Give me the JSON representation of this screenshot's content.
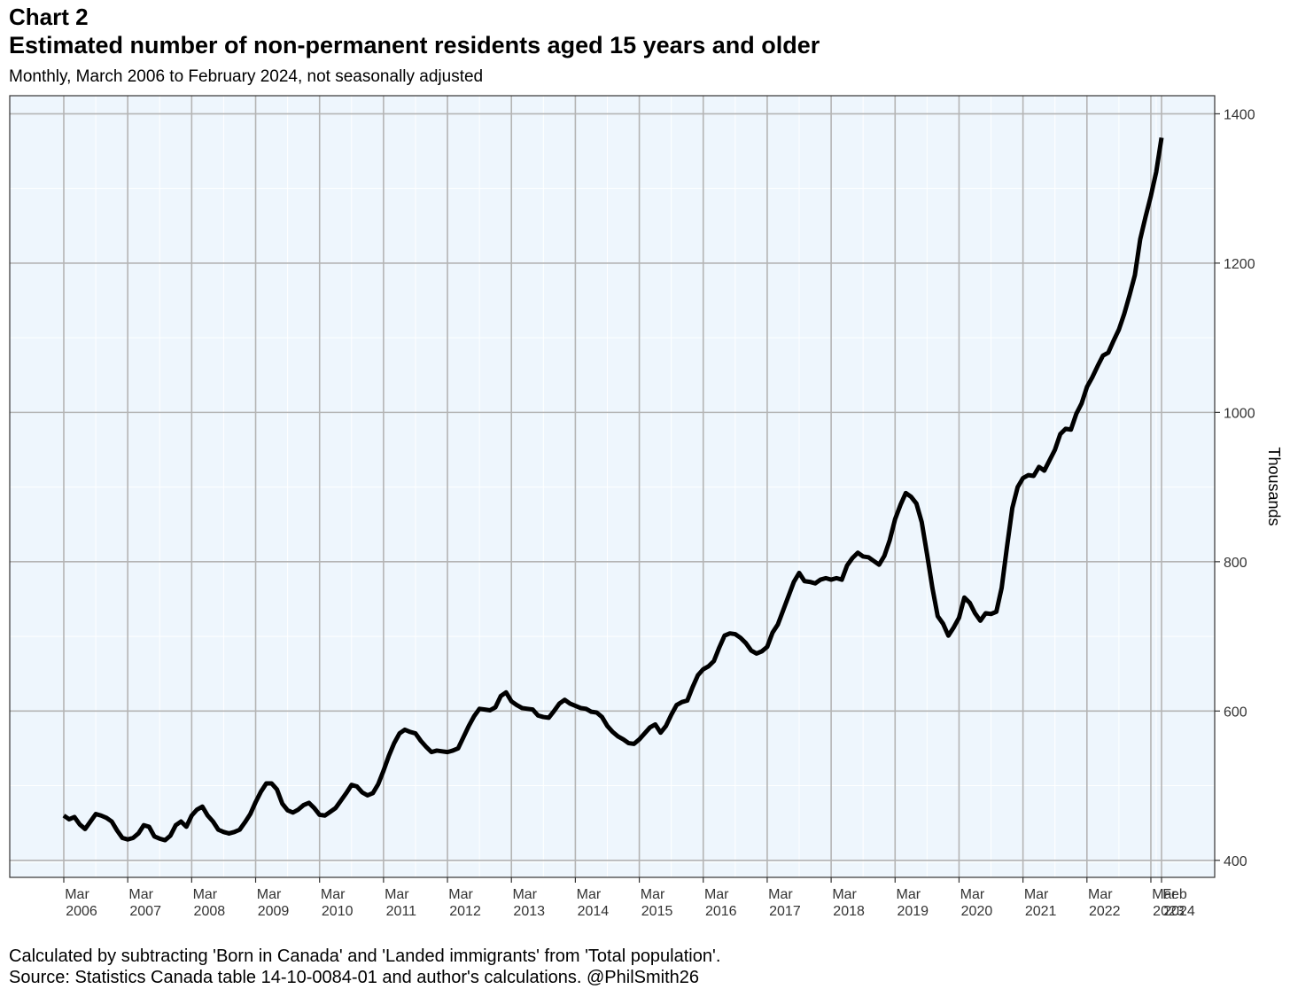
{
  "header": {
    "label": "Chart 2",
    "title": "Estimated number of non-permanent residents aged 15 years and older",
    "subtitle": "Monthly, March 2006 to February 2024, not seasonally adjusted"
  },
  "footer": {
    "note": "Calculated by subtracting 'Born in Canada' and 'Landed immigrants' from 'Total population'.",
    "source": "Source: Statistics Canada table 14-10-0084-01 and author's calculations. @PhilSmith26"
  },
  "colors": {
    "panel_background": "#eef6fd",
    "grid_major": "#b4b4b4",
    "grid_minor": "#ffffff",
    "line": "#000000",
    "border": "#333333"
  },
  "chart_data": {
    "type": "line",
    "title": "Estimated number of non-permanent residents aged 15 years and older",
    "subtitle": "Monthly, March 2006 to February 2024, not seasonally adjusted",
    "xlabel": "",
    "ylabel": "Thousands",
    "y_axis_side": "right",
    "ylim": [
      395,
      1410
    ],
    "yticks": [
      400,
      600,
      800,
      1000,
      1200,
      1400
    ],
    "grid": true,
    "legend": "none",
    "x_tick_labels": [
      {
        "month": "Mar",
        "year": "2006"
      },
      {
        "month": "Mar",
        "year": "2007"
      },
      {
        "month": "Mar",
        "year": "2008"
      },
      {
        "month": "Mar",
        "year": "2009"
      },
      {
        "month": "Mar",
        "year": "2010"
      },
      {
        "month": "Mar",
        "year": "2011"
      },
      {
        "month": "Mar",
        "year": "2012"
      },
      {
        "month": "Mar",
        "year": "2013"
      },
      {
        "month": "Mar",
        "year": "2014"
      },
      {
        "month": "Mar",
        "year": "2015"
      },
      {
        "month": "Mar",
        "year": "2016"
      },
      {
        "month": "Mar",
        "year": "2017"
      },
      {
        "month": "Mar",
        "year": "2018"
      },
      {
        "month": "Mar",
        "year": "2019"
      },
      {
        "month": "Mar",
        "year": "2020"
      },
      {
        "month": "Mar",
        "year": "2021"
      },
      {
        "month": "Mar",
        "year": "2022"
      },
      {
        "month": "Mar",
        "year": "2023"
      },
      {
        "month": "Feb",
        "year": "2024"
      }
    ],
    "x_start": "2006-03",
    "x_end": "2024-02",
    "frequency": "monthly",
    "series": [
      {
        "values": [
          460,
          455,
          458,
          448,
          442,
          452,
          462,
          460,
          457,
          452,
          440,
          430,
          428,
          430,
          436,
          447,
          445,
          432,
          429,
          427,
          433,
          447,
          452,
          445,
          460,
          468,
          472,
          460,
          452,
          441,
          438,
          436,
          438,
          441,
          451,
          462,
          478,
          492,
          503,
          503,
          495,
          476,
          467,
          464,
          468,
          474,
          477,
          470,
          461,
          460,
          465,
          470,
          480,
          490,
          501,
          499,
          491,
          487,
          490,
          502,
          520,
          540,
          557,
          570,
          575,
          572,
          570,
          560,
          552,
          545,
          547,
          546,
          545,
          547,
          550,
          565,
          580,
          593,
          603,
          602,
          601,
          605,
          620,
          625,
          613,
          608,
          604,
          603,
          602,
          594,
          592,
          591,
          600,
          610,
          615,
          610,
          607,
          604,
          603,
          599,
          598,
          592,
          580,
          572,
          566,
          562,
          557,
          556,
          562,
          570,
          578,
          582,
          571,
          580,
          595,
          608,
          612,
          614,
          632,
          648,
          656,
          660,
          667,
          685,
          701,
          704,
          703,
          698,
          691,
          681,
          677,
          680,
          686,
          705,
          716,
          735,
          754,
          773,
          785,
          774,
          773,
          771,
          776,
          778,
          776,
          778,
          776,
          795,
          805,
          812,
          807,
          806,
          801,
          796,
          808,
          829,
          857,
          876,
          892,
          887,
          878,
          853,
          810,
          765,
          727,
          717,
          701,
          712,
          725,
          752,
          745,
          731,
          721,
          731,
          730,
          733,
          765,
          820,
          872,
          900,
          912,
          916,
          915,
          927,
          922,
          936,
          950,
          971,
          978,
          977,
          998,
          1012,
          1034,
          1047,
          1062,
          1076,
          1080,
          1096,
          1111,
          1132,
          1157,
          1184,
          1232,
          1262,
          1290,
          1322,
          1368
        ]
      }
    ]
  }
}
